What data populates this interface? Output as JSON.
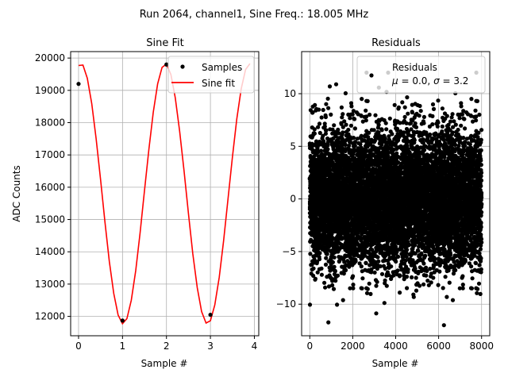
{
  "suptitle": "Run 2064, channel1, Sine Freq.: 18.005 MHz",
  "chart_data": [
    {
      "type": "line",
      "title": "Sine Fit",
      "xlabel": "Sample #",
      "ylabel": "ADC Counts",
      "xlim": [
        -0.18,
        4.1
      ],
      "ylim": [
        11400,
        20200
      ],
      "xticks": [
        0,
        1,
        2,
        3,
        4
      ],
      "yticks": [
        12000,
        13000,
        14000,
        15000,
        16000,
        17000,
        18000,
        19000,
        20000
      ],
      "grid": true,
      "legend_position": "top-right",
      "series": [
        {
          "name": "Samples",
          "kind": "scatter",
          "color": "#000000",
          "x": [
            0,
            1,
            2,
            3
          ],
          "y": [
            19200,
            11870,
            19800,
            12050
          ]
        },
        {
          "name": "Sine fit",
          "kind": "line",
          "color": "#ff0000",
          "model": {
            "offset": 15800,
            "amplitude": 4030,
            "period": 1.92,
            "phase_deg": 80
          },
          "x_range": [
            0,
            3.9
          ]
        }
      ]
    },
    {
      "type": "scatter",
      "title": "Residuals",
      "xlabel": "Sample #",
      "ylabel": "",
      "xlim": [
        -380,
        8380
      ],
      "ylim": [
        -13,
        14
      ],
      "xticks": [
        0,
        2000,
        4000,
        6000,
        8000
      ],
      "yticks": [
        -10,
        -5,
        0,
        5,
        10
      ],
      "grid": true,
      "legend_position": "top-right",
      "legend_label": "Residuals",
      "legend_stats": {
        "mu": "0.0",
        "sigma": "3.2"
      },
      "n_points": 8192,
      "series": [
        {
          "name": "Residuals",
          "color": "#000000",
          "distribution": {
            "mean": 0.0,
            "std": 3.2
          },
          "x_range": [
            0,
            8000
          ]
        }
      ]
    }
  ]
}
